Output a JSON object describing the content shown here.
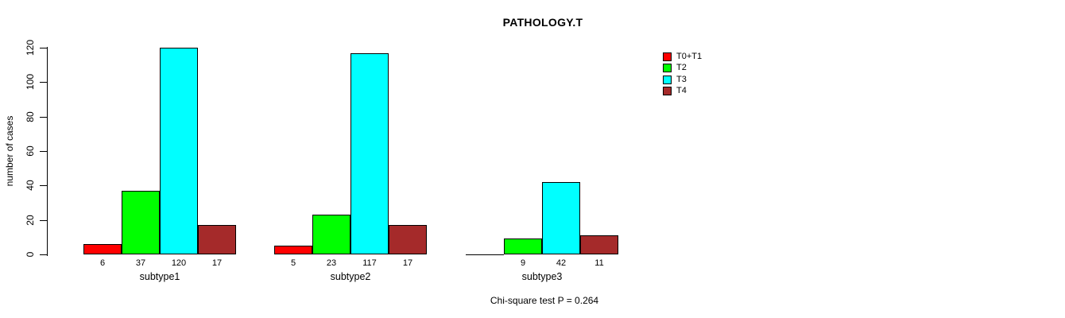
{
  "chart_data": {
    "type": "bar",
    "title": "PATHOLOGY.T",
    "ylabel": "number of cases",
    "xlabel": "",
    "ylim": [
      0,
      120
    ],
    "yticks": [
      0,
      20,
      40,
      60,
      80,
      100,
      120
    ],
    "grid": false,
    "legend_position": "top-right",
    "categories": [
      "subtype1",
      "subtype2",
      "subtype3"
    ],
    "series": [
      {
        "name": "T0+T1",
        "color": "#FF0000",
        "values": [
          6,
          5,
          0
        ],
        "value_labels": [
          "6",
          "5",
          ""
        ]
      },
      {
        "name": "T2",
        "color": "#00FF00",
        "values": [
          37,
          23,
          9
        ],
        "value_labels": [
          "37",
          "23",
          "9"
        ]
      },
      {
        "name": "T3",
        "color": "#00FFFF",
        "values": [
          120,
          117,
          42
        ],
        "value_labels": [
          "120",
          "117",
          "42"
        ]
      },
      {
        "name": "T4",
        "color": "#A52A2A",
        "values": [
          17,
          17,
          11
        ],
        "value_labels": [
          "17",
          "17",
          "11"
        ]
      }
    ],
    "annotation": "Chi-square test P = 0.264"
  },
  "colors": {
    "background": "#FFFFFF",
    "text": "#000000",
    "bar_border": "#000000"
  }
}
